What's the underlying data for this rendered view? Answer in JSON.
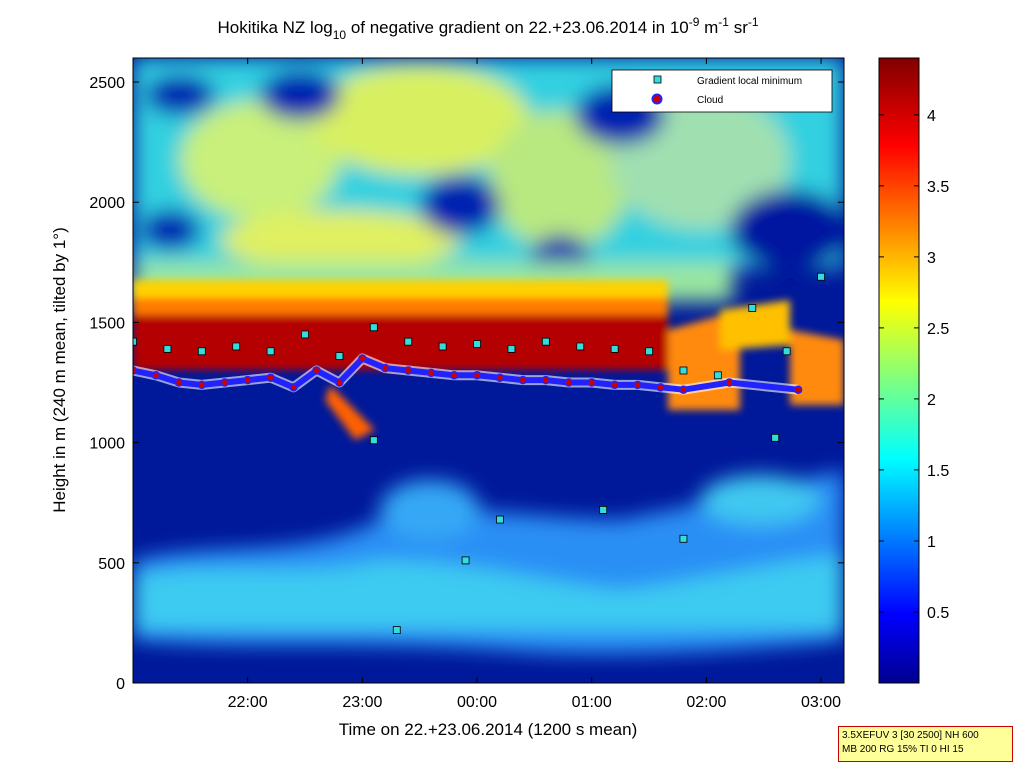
{
  "chart_data": {
    "type": "heatmap",
    "title": {
      "prefix": "Hokitika NZ log",
      "log_base": "10",
      "middle": " of negative gradient on 22.+23.06.2014 in 10",
      "exp1": "-9",
      "unit_m": " m",
      "exp2": "-1",
      "unit_sr": " sr",
      "exp3": "-1"
    },
    "xlabel": "Time on 22.+23.06.2014 (1200 s mean)",
    "ylabel": "Height in m (240 m mean, tilted by 1°)",
    "x_ticks": [
      "22:00",
      "23:00",
      "00:00",
      "01:00",
      "02:00",
      "03:00"
    ],
    "x_tick_hours": [
      22,
      23,
      24,
      25,
      26,
      27
    ],
    "xlim_hours": [
      21.0,
      27.2
    ],
    "y_ticks": [
      "0",
      "500",
      "1000",
      "1500",
      "2000",
      "2500"
    ],
    "y_tick_values": [
      0,
      500,
      1000,
      1500,
      2000,
      2500
    ],
    "ylim": [
      0,
      2600
    ],
    "colorbar": {
      "ticks": [
        "0.5",
        "1",
        "1.5",
        "2",
        "2.5",
        "3",
        "3.5",
        "4"
      ],
      "tick_values": [
        0.5,
        1,
        1.5,
        2,
        2.5,
        3,
        3.5,
        4
      ],
      "range": [
        0,
        4.4
      ],
      "colormap": "jet"
    },
    "legend": {
      "position": "top-right",
      "entries": [
        {
          "label": "Gradient local minimum",
          "marker": "square",
          "face_color": "#33dddd",
          "edge_color": "#000000"
        },
        {
          "label": "Cloud",
          "marker": "circle",
          "face_color": "#cc0000",
          "edge_color": "#2222ff"
        }
      ]
    },
    "series": [
      {
        "name": "Cloud",
        "x_hours": [
          21.0,
          21.2,
          21.4,
          21.6,
          21.8,
          22.0,
          22.2,
          22.4,
          22.6,
          22.8,
          23.0,
          23.2,
          23.4,
          23.6,
          23.8,
          24.0,
          24.2,
          24.4,
          24.6,
          24.8,
          25.0,
          25.2,
          25.4,
          25.6,
          25.8,
          26.2,
          26.8
        ],
        "y": [
          1300,
          1280,
          1250,
          1240,
          1250,
          1260,
          1270,
          1230,
          1300,
          1250,
          1350,
          1310,
          1300,
          1290,
          1280,
          1280,
          1270,
          1260,
          1260,
          1250,
          1250,
          1240,
          1240,
          1230,
          1220,
          1250,
          1220
        ]
      },
      {
        "name": "Gradient local minimum",
        "x_hours": [
          21.0,
          21.3,
          21.6,
          21.9,
          22.2,
          22.5,
          22.8,
          23.1,
          23.4,
          23.7,
          24.0,
          24.3,
          24.6,
          24.9,
          25.2,
          25.5,
          25.8,
          26.1,
          26.4,
          26.7,
          27.0,
          23.1,
          23.9,
          24.2,
          25.1,
          25.8,
          26.6,
          23.3
        ],
        "y": [
          1420,
          1390,
          1380,
          1400,
          1380,
          1450,
          1360,
          1480,
          1420,
          1400,
          1410,
          1390,
          1420,
          1400,
          1390,
          1380,
          1300,
          1280,
          1560,
          1380,
          1690,
          1010,
          510,
          680,
          720,
          600,
          1020,
          220
        ]
      }
    ]
  },
  "info_box": {
    "line1": "3.5XEFUV 3 [30 2500] NH 600",
    "line2": "MB 200 RG 15% TI 0 HI 15"
  }
}
